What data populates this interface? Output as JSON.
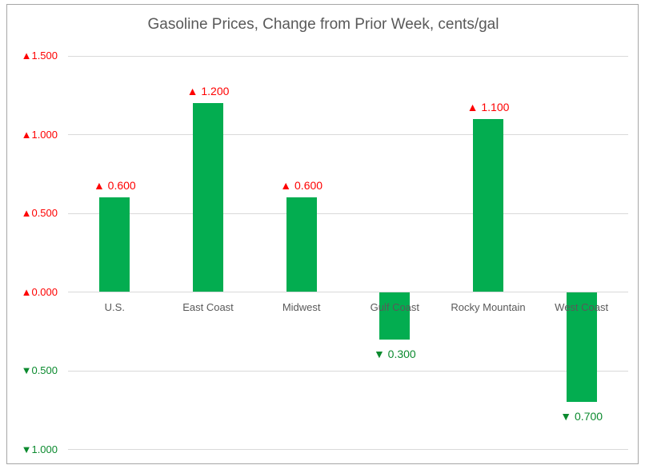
{
  "chart_data": {
    "type": "bar",
    "title": "Gasoline Prices, Change from Prior Week, cents/gal",
    "categories": [
      "U.S.",
      "East Coast",
      "Midwest",
      "Gulf Coast",
      "Rocky Mountain",
      "West Coast"
    ],
    "values": [
      0.6,
      1.2,
      0.6,
      -0.3,
      1.1,
      -0.7
    ],
    "data_labels": [
      "▲ 0.600",
      "▲ 1.200",
      "▲ 0.600",
      "▼ 0.300",
      "▲ 1.100",
      "▼ 0.700"
    ],
    "y_ticks": [
      {
        "value": 1.5,
        "label": "▲1.500",
        "direction": "up"
      },
      {
        "value": 1.0,
        "label": "▲1.000",
        "direction": "up"
      },
      {
        "value": 0.5,
        "label": "▲0.500",
        "direction": "up"
      },
      {
        "value": 0.0,
        "label": "▲0.000",
        "direction": "up"
      },
      {
        "value": -0.5,
        "label": "▼0.500",
        "direction": "down"
      },
      {
        "value": -1.0,
        "label": "▼1.000",
        "direction": "down"
      }
    ],
    "ylim": [
      -1.0,
      1.5
    ],
    "xlabel": "",
    "ylabel": "",
    "grid": true,
    "legend": false
  },
  "colors": {
    "bar_fill": "#03ad50",
    "positive_label": "#fe0000",
    "negative_label": "#0b8a2e",
    "gridline": "#d9d9d9",
    "frame_border": "#a6a6a6",
    "title_text": "#595959",
    "category_text": "#595959"
  }
}
